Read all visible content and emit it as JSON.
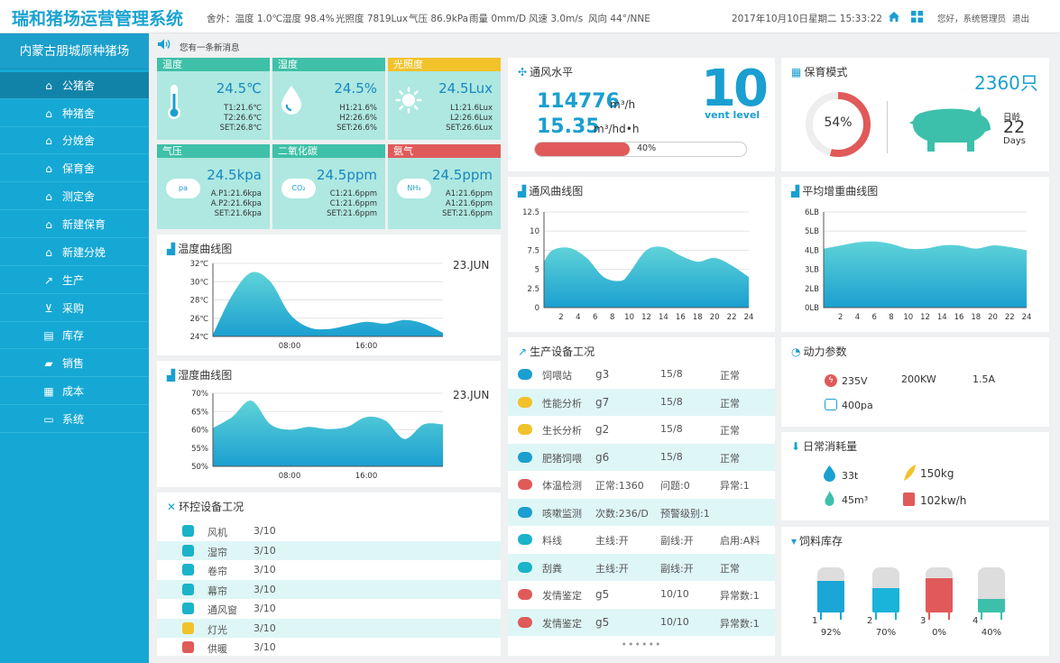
{
  "header": {
    "app_title": "瑞和猪场运营管理系统",
    "weather": [
      "舍外：温度 1.0℃",
      "湿度 98.4%",
      "光照度 7819Lux",
      "气压 86.9kPa",
      "雨量 0mm/D",
      "风速 3.0m/s",
      "风向 44°/NNE"
    ],
    "datetime": "2017年10月10日星期二 15:33:22",
    "greeting": "您好，系统管理员",
    "logout": "退出"
  },
  "sidebar": {
    "farm_name": "内蒙古朋城原种猪场",
    "items": [
      {
        "label": "公猪舍",
        "icon": "home-icon"
      },
      {
        "label": "种猪舍",
        "icon": "home-icon"
      },
      {
        "label": "分娩舍",
        "icon": "home-icon"
      },
      {
        "label": "保育舍",
        "icon": "home-icon"
      },
      {
        "label": "测定舍",
        "icon": "home-icon"
      },
      {
        "label": "新建保育",
        "icon": "home-icon"
      },
      {
        "label": "新建分娩",
        "icon": "home-icon"
      },
      {
        "label": "生产",
        "icon": "line-chart-icon"
      },
      {
        "label": "采购",
        "icon": "cart-icon"
      },
      {
        "label": "库存",
        "icon": "warehouse-icon"
      },
      {
        "label": "销售",
        "icon": "truck-icon"
      },
      {
        "label": "成本",
        "icon": "cost-icon"
      },
      {
        "label": "系统",
        "icon": "monitor-icon"
      }
    ]
  },
  "notice": {
    "text": "您有一条新消息"
  },
  "sensors": [
    {
      "name": "温度",
      "value": "24.5℃",
      "lines": [
        "T1:21.6℃",
        "T2:26.6℃",
        "SET:26.8℃"
      ],
      "color": "#3fc0a8",
      "icon": "thermometer-icon"
    },
    {
      "name": "湿度",
      "value": "24.5%",
      "lines": [
        "H1:21.6%",
        "H2:26.6%",
        "SET:26.6%"
      ],
      "color": "#3fc0a8",
      "icon": "water-drop-icon"
    },
    {
      "name": "光照度",
      "value": "24.5Lux",
      "lines": [
        "L1:21.6Lux",
        "L2:26.6Lux",
        "SET:26.6Lux"
      ],
      "color": "#f2c22b",
      "icon": "sun-icon"
    },
    {
      "name": "气压",
      "value": "24.5kpa",
      "lines": [
        "A.P1:21.6kpa",
        "A.P2:21.6kpa",
        "SET:21.6kpa"
      ],
      "color": "#3fc0a8",
      "icon": "pa-cloud-icon",
      "icon_label": "pa"
    },
    {
      "name": "二氧化碳",
      "value": "24.5ppm",
      "lines": [
        "C1:21.6ppm",
        "C1:21.6ppm",
        "SET:21.6ppm"
      ],
      "color": "#3fc0a8",
      "icon": "co2-cloud-icon",
      "icon_label": "CO₂"
    },
    {
      "name": "氨气",
      "value": "24.5ppm",
      "lines": [
        "A1:21.6ppm",
        "A1:21.6ppm",
        "SET:21.6ppm"
      ],
      "color": "#e05a5a",
      "icon": "nh3-cloud-icon",
      "icon_label": "NH₃"
    }
  ],
  "ventilation": {
    "title": "通风水平",
    "airflow": "114776",
    "airflow_unit": "m³/h",
    "per_head": "15.35",
    "per_head_unit": "m³/hd•h",
    "progress": 0.4,
    "progress_label": "40%",
    "level": "10",
    "level_label": "vent level"
  },
  "nursery": {
    "title": "保育模式",
    "count": "2360只",
    "percent": 0.54,
    "percent_label": "54%",
    "age_label": "日龄",
    "age": "22",
    "age_unit": "Days",
    "colors": {
      "ring": "#e05a5a",
      "pig": "#3cc0ab"
    }
  },
  "charts": {
    "temperature": {
      "title": "温度曲线图",
      "date": "23.JUN"
    },
    "humidity": {
      "title": "湿度曲线图",
      "date": "23.JUN"
    },
    "ventilation_curve": {
      "title": "通风曲线图"
    },
    "weight_gain": {
      "title": "平均增重曲线图"
    }
  },
  "chart_data": [
    {
      "type": "area",
      "title": "温度曲线图",
      "yticks": [
        "32℃",
        "30℃",
        "28℃",
        "26℃",
        "24℃"
      ],
      "ylim": [
        24,
        32
      ],
      "xticks": [
        "08:00",
        "16:00"
      ],
      "x": [
        0,
        2,
        4,
        6,
        8,
        10,
        12,
        14,
        16,
        18,
        20,
        22,
        24
      ],
      "series": [
        {
          "values": [
            24.2,
            28.5,
            31.0,
            30.0,
            26.5,
            25.0,
            24.8,
            25.2,
            25.6,
            25.4,
            25.8,
            25.4,
            24.4
          ]
        }
      ]
    },
    {
      "type": "area",
      "title": "湿度曲线图",
      "yticks": [
        "70%",
        "65%",
        "60%",
        "55%",
        "50%"
      ],
      "ylim": [
        50,
        70
      ],
      "xticks": [
        "08:00",
        "16:00"
      ],
      "x": [
        0,
        2,
        4,
        6,
        8,
        10,
        12,
        14,
        16,
        18,
        20,
        22,
        24
      ],
      "series": [
        {
          "values": [
            60.5,
            63.5,
            68.0,
            61.5,
            60.0,
            60.8,
            60.2,
            60.8,
            63.5,
            62.5,
            57.5,
            61.5,
            61.5
          ]
        }
      ]
    },
    {
      "type": "area",
      "title": "通风曲线图",
      "yticks": [
        "12.5",
        "10",
        "7.5",
        "5",
        "2.5",
        "0"
      ],
      "ylim": [
        0,
        12.5
      ],
      "xticks": [
        "2",
        "4",
        "6",
        "8",
        "10",
        "12",
        "14",
        "16",
        "18",
        "20",
        "22",
        "24"
      ],
      "x": [
        0,
        1,
        3,
        5,
        7,
        9,
        10,
        12,
        14,
        16,
        18,
        20,
        22,
        24
      ],
      "series": [
        {
          "values": [
            6.0,
            7.5,
            7.8,
            6.5,
            4.0,
            3.5,
            4.5,
            7.5,
            7.9,
            6.8,
            6.0,
            6.5,
            5.5,
            4.0
          ]
        }
      ]
    },
    {
      "type": "area",
      "title": "平均增重曲线图",
      "yticks": [
        "6LB",
        "5LB",
        "4LB",
        "3LB",
        "2LB",
        "0LB"
      ],
      "ylim": [
        0,
        6
      ],
      "xticks": [
        "2",
        "4",
        "6",
        "8",
        "10",
        "12",
        "14",
        "16",
        "18",
        "20",
        "22",
        "24"
      ],
      "x": [
        0,
        2,
        4,
        6,
        8,
        10,
        12,
        14,
        16,
        18,
        20,
        22,
        24
      ],
      "series": [
        {
          "values": [
            3.7,
            3.9,
            4.1,
            4.15,
            4.0,
            3.7,
            3.7,
            3.9,
            3.9,
            3.7,
            3.9,
            3.8,
            3.6
          ]
        }
      ]
    }
  ],
  "env_devices": {
    "title": "环控设备工况",
    "rows": [
      {
        "name": "风机",
        "value": "3/10",
        "icon": "fan-icon"
      },
      {
        "name": "湿帘",
        "value": "3/10",
        "icon": "wet-curtain-icon"
      },
      {
        "name": "卷帘",
        "value": "3/10",
        "icon": "roller-blind-icon"
      },
      {
        "name": "幕帘",
        "value": "3/10",
        "icon": "curtain-icon"
      },
      {
        "name": "通风窗",
        "value": "3/10",
        "icon": "vent-window-icon"
      },
      {
        "name": "灯光",
        "value": "3/10",
        "icon": "bulb-icon"
      },
      {
        "name": "供暖",
        "value": "3/10",
        "icon": "heater-icon"
      }
    ]
  },
  "production": {
    "title": "生产设备工况",
    "rows": [
      {
        "icon": "feeder-icon",
        "name": "饲喂站",
        "c1": "g3",
        "c2": "15/8",
        "c3": "正常"
      },
      {
        "icon": "pie-icon",
        "name": "性能分析",
        "c1": "g7",
        "c2": "15/8",
        "c3": "正常"
      },
      {
        "icon": "bar-icon",
        "name": "生长分析",
        "c1": "g2",
        "c2": "15/8",
        "c3": "正常"
      },
      {
        "icon": "pig-icon",
        "name": "肥猪饲喂",
        "c1": "g6",
        "c2": "15/8",
        "c3": "正常"
      },
      {
        "icon": "thermo-icon",
        "name": "体温检测",
        "c1": "正常:1360",
        "c2": "问题:0",
        "c3": "异常:1"
      },
      {
        "icon": "cough-icon",
        "name": "咳嗽监测",
        "c1": "次数:236/D",
        "c2": "预警级别:1",
        "c3": ""
      },
      {
        "icon": "silo-line-icon",
        "name": "料线",
        "c1": "主线:开",
        "c2": "副线:开",
        "c3": "启用:A料"
      },
      {
        "icon": "scraper-icon",
        "name": "刮粪",
        "c1": "主线:开",
        "c2": "副线:开",
        "c3": "正常"
      },
      {
        "icon": "heart-icon",
        "name": "发情鉴定",
        "c1": "g5",
        "c2": "10/10",
        "c3": "异常数:1"
      },
      {
        "icon": "heart-icon",
        "name": "发情鉴定",
        "c1": "g5",
        "c2": "10/10",
        "c3": "异常数:1"
      }
    ],
    "pager": "••••••"
  },
  "power": {
    "title": "动力参数",
    "voltage": "235V",
    "power": "200KW",
    "current": "1.5A",
    "pressure": "400pa"
  },
  "daily": {
    "title": "日常消耗量",
    "water": "33t",
    "feed": "150kg",
    "gas": "45m³",
    "electricity": "102kw/h"
  },
  "feed_stock": {
    "title": "饲料库存",
    "silos": [
      {
        "index": "1",
        "level": 0.92,
        "label": "92%",
        "color": "#1aa6d6"
      },
      {
        "index": "2",
        "level": 0.7,
        "label": "70%",
        "color": "#1ab3da"
      },
      {
        "index": "3",
        "level": 0.0,
        "label": "0%",
        "color": "#e05a5a"
      },
      {
        "index": "4",
        "level": 0.4,
        "label": "40%",
        "color": "#3cc0ab"
      }
    ]
  }
}
